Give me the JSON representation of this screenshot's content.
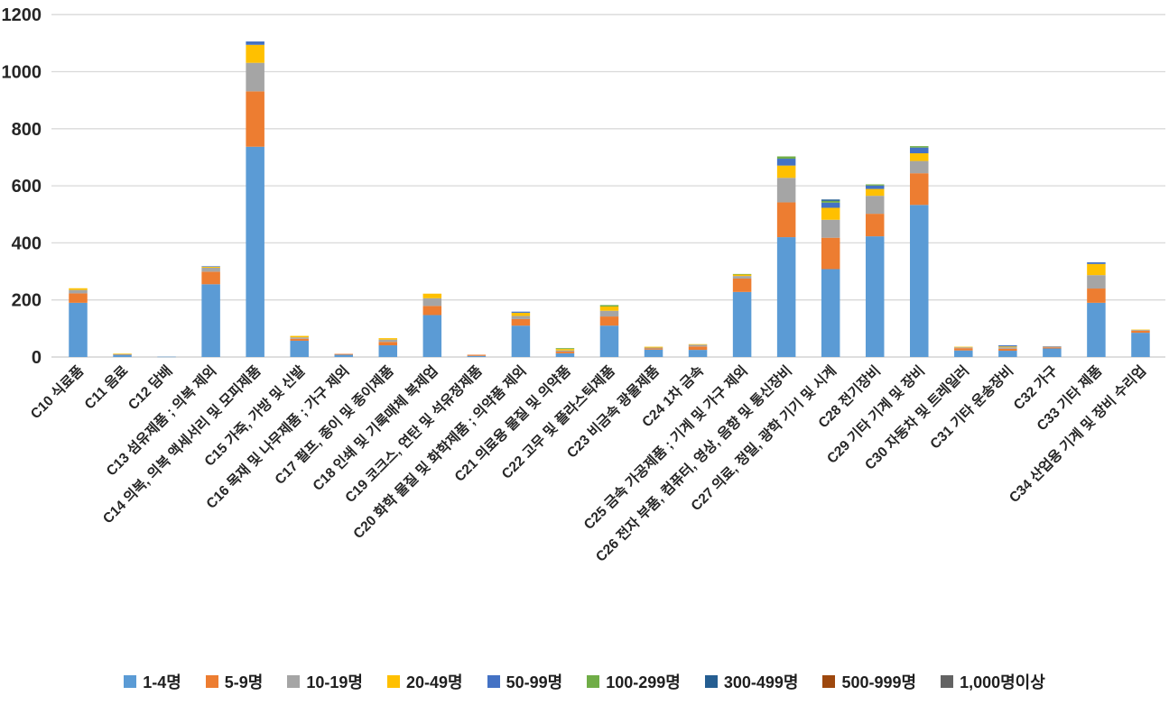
{
  "chart_data": {
    "type": "bar",
    "stacked": true,
    "title": "",
    "xlabel": "",
    "ylabel": "",
    "ylim": [
      0,
      1200
    ],
    "y_ticks": [
      "0",
      "200",
      "400",
      "600",
      "800",
      "1000",
      "1200"
    ],
    "grid": true,
    "legend_position": "bottom",
    "categories": [
      "C10 식료품",
      "C11 음료",
      "C12 담배",
      "C13 섬유제품 ; 의복 제외",
      "C14 의복, 의복 액세서리 및 모피제품",
      "C15 가죽, 가방 및 신발",
      "C16 목재 및 나무제품 ; 가구 제외",
      "C17 펄프, 종이 및 종이제품",
      "C18 인쇄 및 기록매체 복제업",
      "C19 코크스, 연탄 및 석유정제품",
      "C20 화학 물질 및 화학제품 ; 의약품 제외",
      "C21 의료용 물질 및 의약품",
      "C22 고무 및 플라스틱제품",
      "C23 비금속 광물제품",
      "C24 1차 금속",
      "C25 금속 가공제품 ; 기계 및 가구 제외",
      "C26 전자 부품, 컴퓨터, 영상, 음향 및 통신장비",
      "C27 의료, 정밀, 광학 기기 및 시계",
      "C28 전기장비",
      "C29 기타 기계 및 장비",
      "C30 자동차 및 트레일러",
      "C31 기타 운송장비",
      "C32 가구",
      "C33 기타 제품",
      "C34 산업용 기계 및 장비 수리업"
    ],
    "series": [
      {
        "name": "1-4명",
        "color": "#5B9BD5",
        "values": [
          190,
          8,
          1,
          255,
          737,
          57,
          8,
          41,
          147,
          4,
          110,
          13,
          110,
          26,
          25,
          228,
          420,
          308,
          423,
          533,
          23,
          22,
          30,
          190,
          85
        ]
      },
      {
        "name": "5-9명",
        "color": "#ED7D31",
        "values": [
          33,
          1,
          0,
          44,
          194,
          7,
          3,
          12,
          32,
          4,
          23,
          6,
          32,
          4,
          12,
          47,
          122,
          110,
          79,
          111,
          8,
          7,
          4,
          50,
          7
        ]
      },
      {
        "name": "10-19명",
        "color": "#A5A5A5",
        "values": [
          12,
          1,
          0,
          14,
          100,
          5,
          0,
          8,
          27,
          0,
          11,
          4,
          20,
          3,
          6,
          9,
          86,
          63,
          63,
          43,
          3,
          5,
          4,
          47,
          3
        ]
      },
      {
        "name": "20-49명",
        "color": "#FFC000",
        "values": [
          6,
          2,
          0,
          3,
          63,
          5,
          0,
          5,
          16,
          0,
          11,
          5,
          15,
          3,
          2,
          5,
          43,
          42,
          24,
          27,
          2,
          3,
          0,
          39,
          1
        ]
      },
      {
        "name": "50-99명",
        "color": "#4472C4",
        "values": [
          0,
          0,
          0,
          2,
          12,
          0,
          0,
          0,
          0,
          0,
          4,
          0,
          0,
          0,
          0,
          0,
          24,
          18,
          12,
          20,
          0,
          4,
          0,
          6,
          0
        ]
      },
      {
        "name": "100-299명",
        "color": "#70AD47",
        "values": [
          0,
          0,
          0,
          0,
          0,
          0,
          0,
          0,
          0,
          0,
          0,
          3,
          5,
          0,
          0,
          2,
          8,
          6,
          4,
          5,
          0,
          0,
          0,
          0,
          0
        ]
      },
      {
        "name": "300-499명",
        "color": "#255E91",
        "values": [
          0,
          0,
          0,
          0,
          0,
          0,
          0,
          0,
          0,
          0,
          0,
          0,
          0,
          0,
          0,
          0,
          0,
          5,
          0,
          0,
          0,
          0,
          0,
          0,
          0
        ]
      },
      {
        "name": "500-999명",
        "color": "#9E480E",
        "values": [
          0,
          0,
          0,
          0,
          0,
          0,
          0,
          0,
          0,
          0,
          0,
          0,
          0,
          0,
          0,
          0,
          0,
          0,
          0,
          0,
          0,
          0,
          0,
          0,
          0
        ]
      },
      {
        "name": "1,000명이상",
        "color": "#636363",
        "values": [
          0,
          0,
          0,
          0,
          0,
          0,
          0,
          0,
          0,
          0,
          0,
          0,
          0,
          0,
          0,
          0,
          0,
          0,
          0,
          0,
          0,
          0,
          0,
          0,
          0
        ]
      }
    ]
  },
  "style": {
    "gridline_color": "#D9D9D9",
    "axis_line_color": "#D0D0D0",
    "axis_text_color": "#262626",
    "background": "#FFFFFF"
  }
}
